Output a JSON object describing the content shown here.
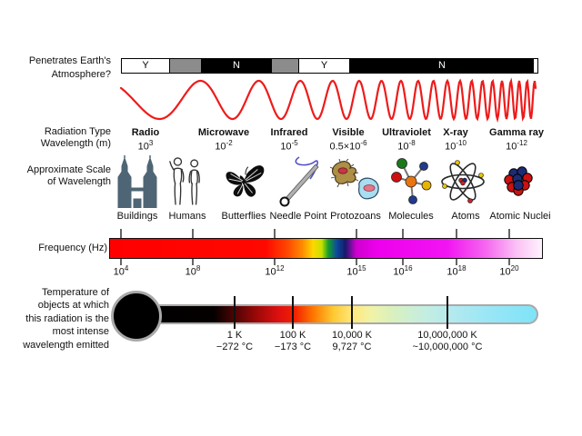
{
  "atmosphere": {
    "label_line1": "Penetrates Earth's",
    "label_line2": "Atmosphere?",
    "segments": [
      {
        "label": "Y",
        "color": "#ffffff"
      },
      {
        "label": "",
        "color": "#8c8c8c"
      },
      {
        "label": "N",
        "color": "#000000"
      },
      {
        "label": "",
        "color": "#8c8c8c"
      },
      {
        "label": "Y",
        "color": "#ffffff"
      },
      {
        "label": "N",
        "color": "#000000"
      }
    ]
  },
  "radiation": {
    "row_label": "Radiation Type",
    "wavelength_row_label": "Wavelength (m)",
    "items": [
      {
        "name": "Radio",
        "wavelength_base": "10",
        "wavelength_exp": "3"
      },
      {
        "name": "Microwave",
        "wavelength_base": "10",
        "wavelength_exp": "-2"
      },
      {
        "name": "Infrared",
        "wavelength_base": "10",
        "wavelength_exp": "-5"
      },
      {
        "name": "Visible",
        "wavelength_base": "0.5×10",
        "wavelength_exp": "-6"
      },
      {
        "name": "Ultraviolet",
        "wavelength_base": "10",
        "wavelength_exp": "-8"
      },
      {
        "name": "X-ray",
        "wavelength_base": "10",
        "wavelength_exp": "-10"
      },
      {
        "name": "Gamma ray",
        "wavelength_base": "10",
        "wavelength_exp": "-12"
      }
    ]
  },
  "scale": {
    "label_line1": "Approximate Scale",
    "label_line2": "of Wavelength",
    "items": [
      {
        "label": "Buildings",
        "icon": "buildings-icon"
      },
      {
        "label": "Humans",
        "icon": "humans-icon"
      },
      {
        "label": "Butterflies",
        "icon": "butterfly-icon"
      },
      {
        "label": "Needle Point",
        "icon": "needle-icon"
      },
      {
        "label": "Protozoans",
        "icon": "protozoans-icon"
      },
      {
        "label": "Molecules",
        "icon": "molecule-icon"
      },
      {
        "label": "Atoms",
        "icon": "atom-icon"
      },
      {
        "label": "Atomic Nuclei",
        "icon": "atomic-nuclei-icon"
      }
    ]
  },
  "frequency": {
    "label": "Frequency (Hz)",
    "ticks": [
      {
        "base": "10",
        "exp": "4"
      },
      {
        "base": "10",
        "exp": "8"
      },
      {
        "base": "10",
        "exp": "12"
      },
      {
        "base": "10",
        "exp": "15"
      },
      {
        "base": "10",
        "exp": "16"
      },
      {
        "base": "10",
        "exp": "18"
      },
      {
        "base": "10",
        "exp": "20"
      }
    ],
    "gradient_stops": [
      [
        "0%",
        "#ff0000"
      ],
      [
        "36%",
        "#ff0800"
      ],
      [
        "41%",
        "#ff4600"
      ],
      [
        "44.5%",
        "#ff8a00"
      ],
      [
        "47%",
        "#ffd800"
      ],
      [
        "49%",
        "#c8e000"
      ],
      [
        "50.5%",
        "#18a028"
      ],
      [
        "52.5%",
        "#0c4a9c"
      ],
      [
        "54.5%",
        "#181a6a"
      ],
      [
        "57%",
        "#cf00cf"
      ],
      [
        "62%",
        "#ee00ee"
      ],
      [
        "78%",
        "#f214f2"
      ],
      [
        "87%",
        "#f567ef"
      ],
      [
        "94%",
        "#fbc0f5"
      ],
      [
        "100%",
        "#fef2fd"
      ]
    ]
  },
  "temperature": {
    "label_lines": [
      "Temperature of",
      "objects at which",
      "this radiation is the",
      "most intense",
      "wavelength emitted"
    ],
    "ticks": [
      {
        "kelvin": "1 K",
        "celsius": "−272 °C"
      },
      {
        "kelvin": "100 K",
        "celsius": "−173 °C"
      },
      {
        "kelvin": "10,000 K",
        "celsius": "9,727 °C"
      },
      {
        "kelvin": "10,000,000 K",
        "celsius": "~10,000,000 °C"
      }
    ],
    "gradient_stops": [
      [
        "0%",
        "#000000"
      ],
      [
        "16%",
        "#050000"
      ],
      [
        "21%",
        "#4a0404"
      ],
      [
        "27%",
        "#9c0808"
      ],
      [
        "33%",
        "#e01010"
      ],
      [
        "37%",
        "#f22000"
      ],
      [
        "42%",
        "#ff7a00"
      ],
      [
        "47%",
        "#ffc832"
      ],
      [
        "52%",
        "#ffe97a"
      ],
      [
        "57%",
        "#f0f2a8"
      ],
      [
        "63%",
        "#d8f0c0"
      ],
      [
        "70%",
        "#c6eede"
      ],
      [
        "77%",
        "#b6eaee"
      ],
      [
        "88%",
        "#98e6f6"
      ],
      [
        "100%",
        "#7fe3f8"
      ]
    ]
  },
  "colors": {
    "wave": "#ee1b1b",
    "buildings": "#4e6575",
    "atmosphere_yes": "#ffffff",
    "atmosphere_partial": "#8c8c8c",
    "atmosphere_no": "#000000"
  }
}
